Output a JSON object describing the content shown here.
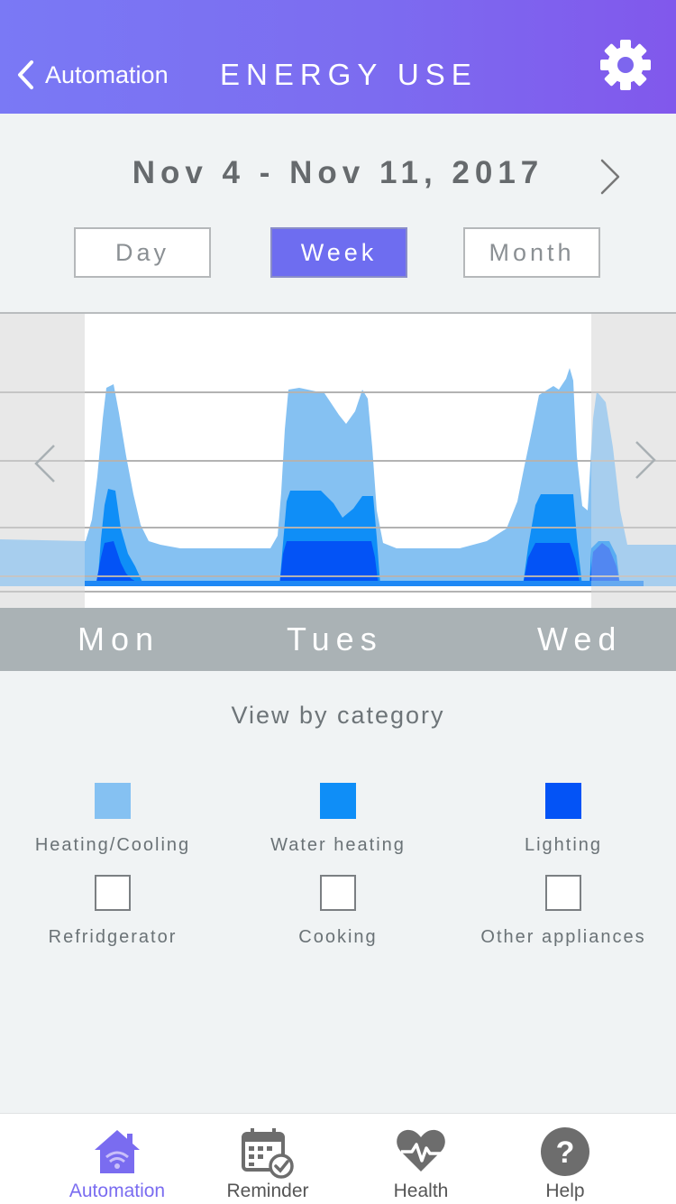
{
  "header": {
    "back_label": "Automation",
    "title": "ENERGY USE",
    "settings_icon": "gear-icon"
  },
  "date": {
    "range": "Nov 4 - Nov 11, 2017",
    "next_icon": "chevron-right-icon"
  },
  "period_tabs": [
    {
      "label": "Day",
      "active": false
    },
    {
      "label": "Week",
      "active": true
    },
    {
      "label": "Month",
      "active": false
    }
  ],
  "chart": {
    "prev_icon": "chevron-left-icon",
    "next_icon": "chevron-right-icon",
    "days": [
      "Mon",
      "Tues",
      "Wed"
    ]
  },
  "chart_data": {
    "type": "area",
    "title": "",
    "xlabel": "",
    "ylabel": "",
    "categories": [
      "Mon",
      "Tues",
      "Wed"
    ],
    "grid": true,
    "series": [
      {
        "name": "Heating/Cooling",
        "color": "#85c1f2"
      },
      {
        "name": "Water heating",
        "color": "#0f8ef7"
      },
      {
        "name": "Lighting",
        "color": "#0353f6"
      }
    ]
  },
  "categories": {
    "title": "View by category",
    "items": [
      {
        "label": "Heating/Cooling",
        "color": "#85c1f2",
        "selected": true
      },
      {
        "label": "Water heating",
        "color": "#0f8ef7",
        "selected": true
      },
      {
        "label": "Lighting",
        "color": "#0353f6",
        "selected": true
      },
      {
        "label": "Refridgerator",
        "color": "#ffffff",
        "selected": false
      },
      {
        "label": "Cooking",
        "color": "#ffffff",
        "selected": false
      },
      {
        "label": "Other appliances",
        "color": "#ffffff",
        "selected": false
      }
    ]
  },
  "bottom_nav": [
    {
      "label": "Automation",
      "icon": "home-wifi-icon",
      "active": true
    },
    {
      "label": "Reminder",
      "icon": "calendar-check-icon",
      "active": false
    },
    {
      "label": "Health",
      "icon": "heart-pulse-icon",
      "active": false
    },
    {
      "label": "Help",
      "icon": "question-circle-icon",
      "active": false
    }
  ],
  "colors": {
    "accent": "#7a6cf0",
    "header_start": "#7a79f5",
    "header_end": "#8158ec",
    "day_bar": "#aab2b5"
  }
}
